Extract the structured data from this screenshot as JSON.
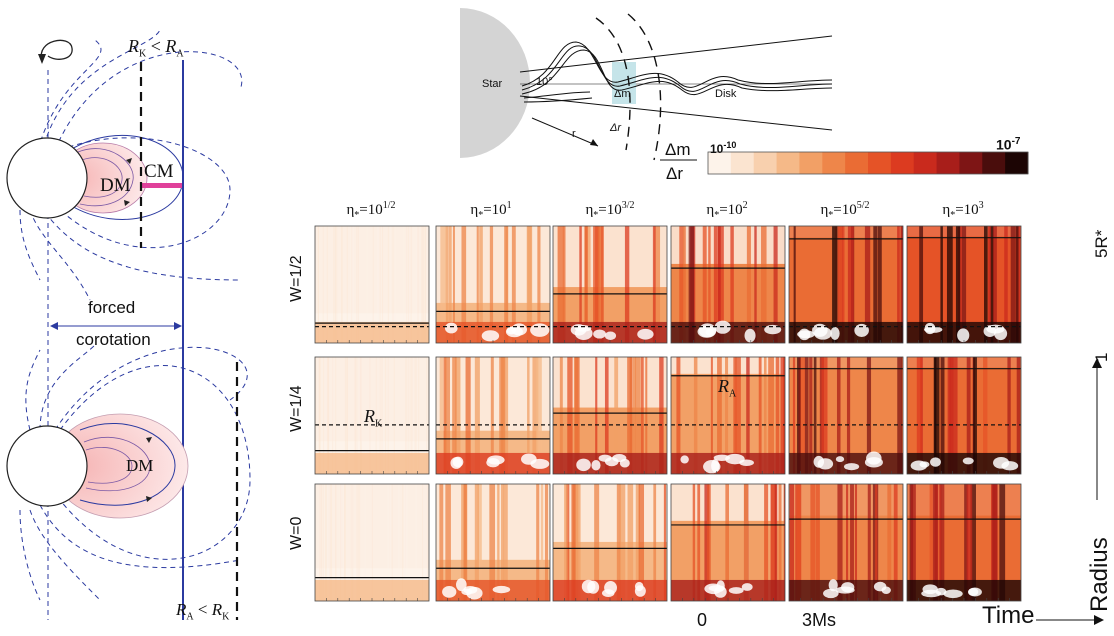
{
  "left_panel": {
    "top_condition": "R_K < R_A",
    "top_r1": "R",
    "top_r1_sub": "K",
    "top_lt": "<",
    "top_r2": "R",
    "top_r2_sub": "A",
    "dm_top": "DM",
    "cm": "CM",
    "forced": "forced",
    "corotation": "corotation",
    "dm_bottom": "DM",
    "bottom_r1": "R",
    "bottom_r1_sub": "A",
    "bottom_lt": "<",
    "bottom_r2": "R",
    "bottom_r2_sub": "K"
  },
  "top_schematic": {
    "star": "Star",
    "angle": "10°",
    "dm": "Δm",
    "dr": "Δr",
    "r": "r",
    "disk": "Disk"
  },
  "colorbar": {
    "numerator": "Δm",
    "denominator": "Δr",
    "min_base": "10",
    "min_exp": "-10",
    "max_base": "10",
    "max_exp": "-7",
    "colors": [
      "#fdf3ea",
      "#fbe4d0",
      "#f8d0ae",
      "#f5b988",
      "#f2a066",
      "#ee864a",
      "#ea6c34",
      "#e55327",
      "#dc3b20",
      "#c92a1d",
      "#a81e1a",
      "#7e1515",
      "#4a0d0c",
      "#1c0504"
    ]
  },
  "grid": {
    "columns": [
      {
        "eta": "η",
        "sub": "*",
        "eq": "=10",
        "exp": "1/2"
      },
      {
        "eta": "η",
        "sub": "*",
        "eq": "=10",
        "exp": "1"
      },
      {
        "eta": "η",
        "sub": "*",
        "eq": "=10",
        "exp": "3/2"
      },
      {
        "eta": "η",
        "sub": "*",
        "eq": "=10",
        "exp": "2"
      },
      {
        "eta": "η",
        "sub": "*",
        "eq": "=10",
        "exp": "5/2"
      },
      {
        "eta": "η",
        "sub": "*",
        "eq": "=10",
        "exp": "3"
      }
    ],
    "rows": [
      "W=1/2",
      "W=1/4",
      "W=0"
    ],
    "rk_label": "R",
    "rk_sub": "K",
    "ra_label": "R",
    "ra_sub": "A",
    "y_top": "5R*",
    "y_bottom": "1",
    "y_axis": "Radius",
    "x_start": "0",
    "x_end": "3Ms",
    "x_axis": "Time"
  }
}
